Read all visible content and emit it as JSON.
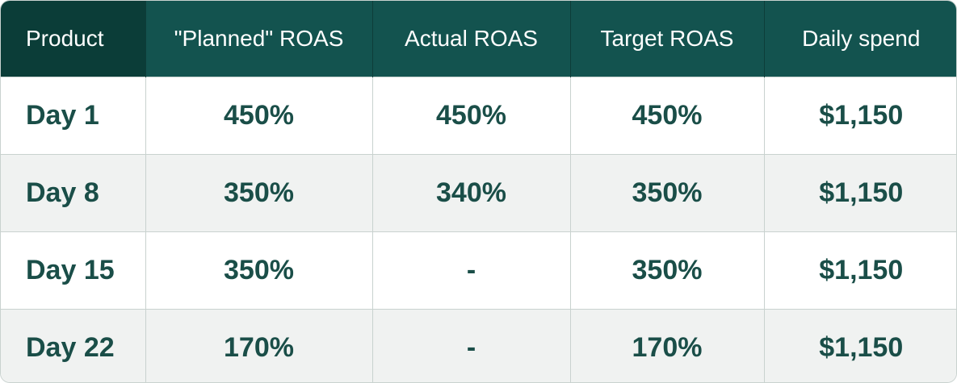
{
  "table": {
    "headers": [
      "Product",
      "\"Planned\" ROAS",
      "Actual ROAS",
      "Target ROAS",
      "Daily spend"
    ],
    "rows": [
      [
        "Day 1",
        "450%",
        "450%",
        "450%",
        "$1,150"
      ],
      [
        "Day 8",
        "350%",
        "340%",
        "350%",
        "$1,150"
      ],
      [
        "Day 15",
        "350%",
        "-",
        "350%",
        "$1,150"
      ],
      [
        "Day 22",
        "170%",
        "-",
        "170%",
        "$1,150"
      ]
    ]
  },
  "colors": {
    "header_bg": "#13534f",
    "header_first_bg": "#0b3d38",
    "body_text": "#1a4e48",
    "row_alt_bg": "#f0f2f1",
    "border": "#c9d2cf"
  }
}
